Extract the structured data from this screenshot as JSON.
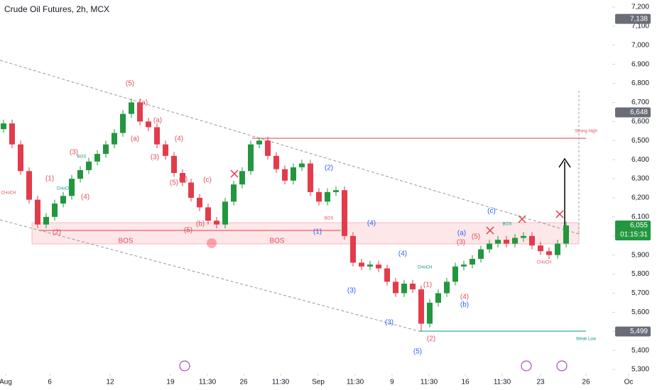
{
  "chart_data": {
    "type": "candlestick",
    "title": "Crude Oil Futures, 2h, MCX",
    "up_color": "#22973f",
    "down_color": "#e23c4b",
    "open": [
      6560,
      6590,
      6480,
      6340,
      6190,
      6060,
      6100,
      6170,
      6210,
      6300,
      6345,
      6390,
      6430,
      6480,
      6540,
      6640,
      6700,
      6600,
      6570,
      6480,
      6420,
      6330,
      6280,
      6200,
      6150,
      6080,
      6060,
      6180,
      6270,
      6340,
      6480,
      6500,
      6420,
      6350,
      6290,
      6360,
      6380,
      6230,
      6180,
      6230,
      6240,
      6000,
      5860,
      5840,
      5850,
      5830,
      5760,
      5700,
      5750,
      5720,
      5540,
      5650,
      5700,
      5760,
      5840,
      5850,
      5880,
      5930,
      5960,
      5980,
      5960,
      5990,
      6000,
      5950,
      5920,
      5900,
      5960
    ],
    "high": [
      6610,
      6610,
      6500,
      6360,
      6210,
      6120,
      6190,
      6230,
      6320,
      6365,
      6410,
      6450,
      6500,
      6560,
      6660,
      6720,
      6720,
      6620,
      6590,
      6500,
      6440,
      6350,
      6300,
      6220,
      6170,
      6100,
      6200,
      6290,
      6360,
      6500,
      6515,
      6520,
      6440,
      6370,
      6380,
      6400,
      6400,
      6250,
      6250,
      6260,
      6260,
      6020,
      5880,
      5870,
      5870,
      5850,
      5780,
      5770,
      5770,
      5740,
      5670,
      5720,
      5780,
      5860,
      5870,
      5900,
      5950,
      5980,
      6000,
      6000,
      6010,
      6020,
      6020,
      5970,
      5940,
      5980,
      6075
    ],
    "low": [
      6540,
      6460,
      6320,
      6170,
      6040,
      6040,
      6080,
      6150,
      6190,
      6280,
      6325,
      6370,
      6410,
      6460,
      6520,
      6620,
      6580,
      6550,
      6460,
      6400,
      6310,
      6260,
      6180,
      6130,
      6060,
      6040,
      6040,
      6160,
      6250,
      6320,
      6460,
      6400,
      6330,
      6270,
      6270,
      6340,
      6210,
      6160,
      6160,
      6210,
      5980,
      5840,
      5820,
      5820,
      5810,
      5740,
      5680,
      5680,
      5700,
      5499,
      5520,
      5630,
      5680,
      5740,
      5820,
      5830,
      5860,
      5910,
      5940,
      5940,
      5940,
      5970,
      5930,
      5900,
      5880,
      5880,
      5940
    ],
    "close": [
      6590,
      6480,
      6340,
      6190,
      6060,
      6100,
      6170,
      6210,
      6300,
      6345,
      6390,
      6430,
      6480,
      6540,
      6640,
      6700,
      6600,
      6570,
      6480,
      6420,
      6330,
      6280,
      6200,
      6150,
      6080,
      6060,
      6180,
      6270,
      6340,
      6480,
      6500,
      6420,
      6350,
      6290,
      6360,
      6380,
      6230,
      6180,
      6230,
      6240,
      6000,
      5860,
      5840,
      5850,
      5830,
      5760,
      5700,
      5750,
      5720,
      5540,
      5650,
      5700,
      5760,
      5840,
      5850,
      5880,
      5930,
      5960,
      5980,
      5960,
      5990,
      6000,
      5950,
      5920,
      5900,
      5960,
      6055
    ],
    "xlim": [
      -0.417,
      77.25
    ],
    "xticks": [
      {
        "value": 0.25,
        "label": "Aug"
      },
      {
        "value": 5.42,
        "label": "6"
      },
      {
        "value": 12.5,
        "label": "12"
      },
      {
        "value": 19.58,
        "label": "19"
      },
      {
        "value": 23.92,
        "label": "11:30"
      },
      {
        "value": 28.17,
        "label": "26"
      },
      {
        "value": 32.5,
        "label": "11:30"
      },
      {
        "value": 36.92,
        "label": "Sep"
      },
      {
        "value": 41.25,
        "label": "11:30"
      },
      {
        "value": 45.58,
        "label": "9"
      },
      {
        "value": 49.92,
        "label": "11:30"
      },
      {
        "value": 54.17,
        "label": "16"
      },
      {
        "value": 58.5,
        "label": "11:30"
      },
      {
        "value": 63,
        "label": "23"
      },
      {
        "value": 68.33,
        "label": "26"
      },
      {
        "value": 73.33,
        "label": "Oc"
      }
    ],
    "ylim": [
      5278,
      7237
    ],
    "yticks": [
      {
        "value": 5300,
        "label": "5,300"
      },
      {
        "value": 5400,
        "label": "5,400"
      },
      {
        "value": 5500,
        "label": "5,500"
      },
      {
        "value": 5600,
        "label": "5,600"
      },
      {
        "value": 5700,
        "label": "5,700"
      },
      {
        "value": 5800,
        "label": "5,800"
      },
      {
        "value": 5900,
        "label": "5,900"
      },
      {
        "value": 6000,
        "label": "6,000"
      },
      {
        "value": 6100,
        "label": "6,100"
      },
      {
        "value": 6200,
        "label": "6,200"
      },
      {
        "value": 6300,
        "label": "6,300"
      },
      {
        "value": 6400,
        "label": "6,400"
      },
      {
        "value": 6500,
        "label": "6,500"
      },
      {
        "value": 6600,
        "label": "6,600"
      },
      {
        "value": 6700,
        "label": "6,700"
      },
      {
        "value": 6800,
        "label": "6,800"
      },
      {
        "value": 6900,
        "label": "6,900"
      },
      {
        "value": 7000,
        "label": "7,000"
      },
      {
        "value": 7100,
        "label": "7,100"
      },
      {
        "value": 7200,
        "label": "7,200"
      }
    ],
    "price_labels": [
      {
        "value": 7138,
        "label": "7,138"
      },
      {
        "value": 6648,
        "label": "6,648"
      },
      {
        "value": 6055,
        "label": "6,055"
      },
      {
        "value": 5499,
        "label": "5,499"
      }
    ],
    "countdown": "01:15:31",
    "annotations": [
      "(5)",
      "(a)",
      "(a)",
      "(a)",
      "(3)",
      "(4)",
      "(5)",
      "(3)",
      "(1)",
      "(4)",
      "(2)",
      "(a)",
      "(b)",
      "(c)",
      "(5)",
      "(2)",
      "(1)",
      "(4)",
      "(4)",
      "(3)",
      "(3)",
      "(5)",
      "(2)",
      "(1)",
      "(4)",
      "(b)",
      "(a)",
      "(3)",
      "(5)",
      "(c)",
      "BOS",
      "BOS",
      "Strong High",
      "Weak Low",
      "CHoCH",
      "CHoCH",
      "BOS",
      "BOS",
      "CHoCH",
      "BOS",
      "CHoCH"
    ]
  }
}
